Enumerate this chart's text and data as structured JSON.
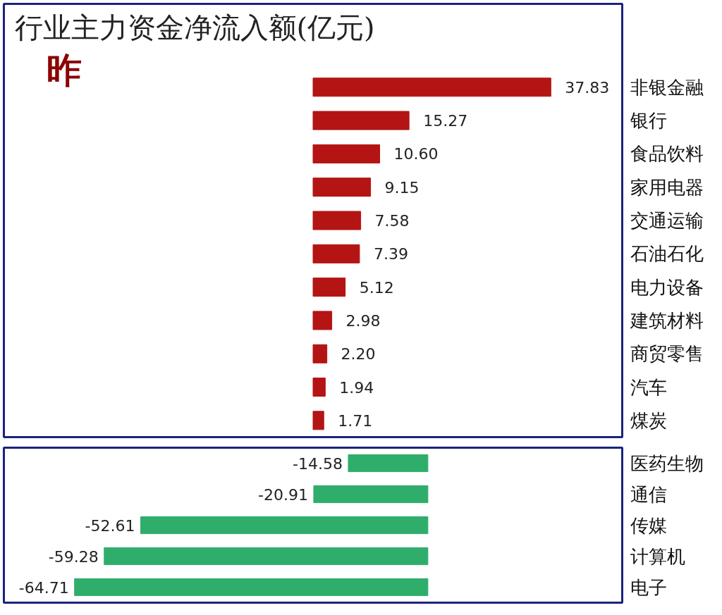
{
  "chart_data": [
    {
      "type": "bar",
      "orientation": "horizontal",
      "title": "行业主力资金净流入额(亿元)",
      "annotations": [
        "昨"
      ],
      "categories": [
        "非银金融",
        "银行",
        "食品饮料",
        "家用电器",
        "交通运输",
        "石油石化",
        "电力设备",
        "建筑材料",
        "商贸零售",
        "汽车",
        "煤炭"
      ],
      "series": [
        {
          "color": "#b41414",
          "values": [
            37.83,
            15.27,
            10.6,
            9.15,
            7.58,
            7.39,
            5.12,
            2.98,
            2.2,
            1.94,
            1.71
          ],
          "value_labels": [
            "37.83",
            "15.27",
            "10.60",
            "9.15",
            "7.58",
            "7.39",
            "5.12",
            "2.98",
            "2.20",
            "1.94",
            "1.71"
          ]
        }
      ]
    },
    {
      "type": "bar",
      "orientation": "horizontal",
      "categories": [
        "医药生物",
        "通信",
        "传媒",
        "计算机",
        "电子"
      ],
      "series": [
        {
          "color": "#2fad6b",
          "values": [
            -14.58,
            -20.91,
            -52.61,
            -59.28,
            -64.71
          ],
          "value_labels": [
            "-14.58",
            "-20.91",
            "-52.61",
            "-59.28",
            "-64.71"
          ]
        }
      ]
    }
  ]
}
